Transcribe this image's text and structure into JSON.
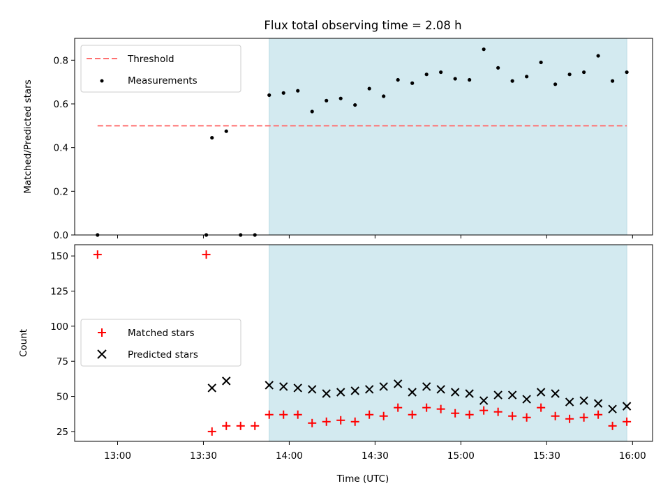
{
  "chart_data": [
    {
      "type": "scatter",
      "title": "Flux total observing time = 2.08 h",
      "ylabel": "Matched/Predicted stars",
      "xlabel": "",
      "xlim": [
        "12:45",
        "16:07"
      ],
      "ylim": [
        0,
        0.9
      ],
      "yticks": [
        "0.0",
        "0.2",
        "0.4",
        "0.6",
        "0.8"
      ],
      "shaded_region": {
        "start": "13:53",
        "end": "15:58",
        "color": "#d3eaf0"
      },
      "legend": {
        "placement": "top-left",
        "entries": [
          "Threshold",
          "Measurements"
        ]
      },
      "threshold": {
        "name": "Threshold",
        "y": 0.5,
        "x_start": "12:53",
        "x_end": "15:58",
        "color": "#ff7070",
        "style": "dashed"
      },
      "series": [
        {
          "name": "Measurements",
          "color": "#000000",
          "marker": "dot",
          "x": [
            "12:53",
            "13:31",
            "13:43",
            "13:48",
            "13:53",
            "13:58",
            "14:03",
            "14:08",
            "14:13",
            "14:18",
            "14:23",
            "14:28",
            "14:33",
            "14:38",
            "14:43",
            "14:48",
            "14:53",
            "14:58",
            "15:03",
            "15:08",
            "15:13",
            "15:18",
            "15:23",
            "15:28",
            "15:33",
            "15:38",
            "15:43",
            "15:48",
            "15:53",
            "15:58"
          ],
          "y": [
            0.0,
            0.0,
            0.0,
            0.0,
            0.64,
            0.65,
            0.66,
            0.565,
            0.615,
            0.625,
            0.595,
            0.67,
            0.635,
            0.71,
            0.695,
            0.735,
            0.745,
            0.715,
            0.71,
            0.85,
            0.765,
            0.705,
            0.725,
            0.79,
            0.69,
            0.735,
            0.745,
            0.82,
            0.705,
            0.745
          ]
        },
        {
          "name": "",
          "color": "#000000",
          "marker": "dot",
          "x": [
            "13:33",
            "13:38"
          ],
          "y": [
            0.445,
            0.475
          ]
        }
      ]
    },
    {
      "type": "scatter",
      "title": "",
      "xlabel": "Time (UTC)",
      "ylabel": "Count",
      "xlim": [
        "12:45",
        "16:07"
      ],
      "ylim": [
        18,
        158
      ],
      "yticks": [
        "25",
        "50",
        "75",
        "100",
        "125",
        "150"
      ],
      "xticks": [
        "13:00",
        "13:30",
        "14:00",
        "14:30",
        "15:00",
        "15:30",
        "16:00"
      ],
      "shaded_region": {
        "start": "13:53",
        "end": "15:58",
        "color": "#d3eaf0"
      },
      "legend": {
        "placement": "center-left",
        "entries": [
          "Matched stars",
          "Predicted stars"
        ]
      },
      "series": [
        {
          "name": "Matched stars",
          "color": "#ff0000",
          "marker": "plus",
          "x": [
            "12:53",
            "13:31",
            "13:33",
            "13:38",
            "13:43",
            "13:48",
            "13:53",
            "13:58",
            "14:03",
            "14:08",
            "14:13",
            "14:18",
            "14:23",
            "14:28",
            "14:33",
            "14:38",
            "14:43",
            "14:48",
            "14:53",
            "14:58",
            "15:03",
            "15:08",
            "15:13",
            "15:18",
            "15:23",
            "15:28",
            "15:33",
            "15:38",
            "15:43",
            "15:48",
            "15:53",
            "15:58"
          ],
          "y": [
            151,
            151,
            25,
            29,
            29,
            29,
            37,
            37,
            37,
            31,
            32,
            33,
            32,
            37,
            36,
            42,
            37,
            42,
            41,
            38,
            37,
            40,
            39,
            36,
            35,
            42,
            36,
            34,
            35,
            37,
            29,
            32
          ]
        },
        {
          "name": "Predicted stars",
          "color": "#000000",
          "marker": "x",
          "x": [
            "13:33",
            "13:38",
            "13:53",
            "13:58",
            "14:03",
            "14:08",
            "14:13",
            "14:18",
            "14:23",
            "14:28",
            "14:33",
            "14:38",
            "14:43",
            "14:48",
            "14:53",
            "14:58",
            "15:03",
            "15:08",
            "15:13",
            "15:18",
            "15:23",
            "15:28",
            "15:33",
            "15:38",
            "15:43",
            "15:48",
            "15:53",
            "15:58"
          ],
          "y": [
            56,
            61,
            58,
            57,
            56,
            55,
            52,
            53,
            54,
            55,
            57,
            59,
            53,
            57,
            55,
            53,
            52,
            47,
            51,
            51,
            48,
            53,
            52,
            46,
            47,
            45,
            41,
            43
          ]
        }
      ]
    }
  ]
}
